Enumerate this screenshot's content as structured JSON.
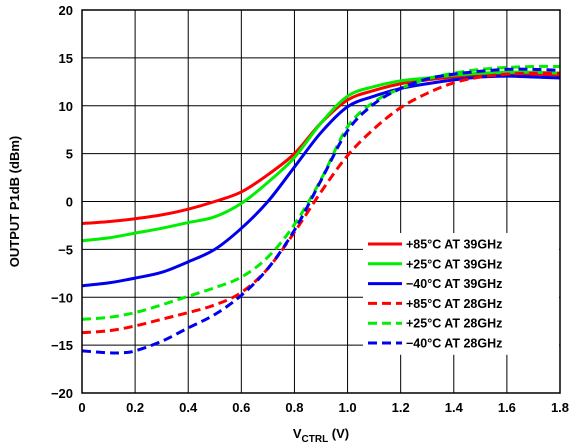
{
  "chart_data": {
    "type": "line",
    "xlabel": {
      "main": "V",
      "sub": "CTRL",
      "unit": " (V)"
    },
    "ylabel": "OUTPUT P1dB (dBm)",
    "xlim": [
      0,
      1.8
    ],
    "ylim": [
      -20,
      20
    ],
    "x_ticks": [
      "0",
      "0.2",
      "0.4",
      "0.6",
      "0.8",
      "1.0",
      "1.2",
      "1.4",
      "1.6",
      "1.8"
    ],
    "y_ticks": [
      "20",
      "15",
      "10",
      "5",
      "0",
      "−5",
      "−10",
      "−15",
      "−20"
    ],
    "grid": true,
    "legend_position": "bottom-right",
    "series": [
      {
        "name": "+85°C AT 39GHz",
        "color": "#ff0000",
        "style": "solid",
        "x": [
          0,
          0.1,
          0.2,
          0.3,
          0.4,
          0.5,
          0.6,
          0.7,
          0.8,
          0.9,
          1.0,
          1.1,
          1.2,
          1.3,
          1.4,
          1.5,
          1.6,
          1.7,
          1.8
        ],
        "y": [
          -2.3,
          -2.1,
          -1.8,
          -1.4,
          -0.8,
          0.0,
          1.0,
          2.8,
          5.0,
          8.2,
          10.6,
          11.6,
          12.3,
          12.7,
          13.0,
          13.2,
          13.3,
          13.3,
          13.2
        ]
      },
      {
        "name": "+25°C AT 39GHz",
        "color": "#00ee00",
        "style": "solid",
        "x": [
          0,
          0.1,
          0.2,
          0.3,
          0.4,
          0.5,
          0.6,
          0.7,
          0.8,
          0.9,
          1.0,
          1.1,
          1.2,
          1.3,
          1.4,
          1.5,
          1.6,
          1.7,
          1.8
        ],
        "y": [
          -4.1,
          -3.8,
          -3.3,
          -2.8,
          -2.2,
          -1.6,
          -0.2,
          2.0,
          4.6,
          8.2,
          11.0,
          12.0,
          12.6,
          12.9,
          13.2,
          13.4,
          13.5,
          13.5,
          13.4
        ]
      },
      {
        "name": "−40°C AT 39GHz",
        "color": "#0000ee",
        "style": "solid",
        "x": [
          0,
          0.1,
          0.2,
          0.3,
          0.4,
          0.5,
          0.6,
          0.7,
          0.8,
          0.9,
          1.0,
          1.1,
          1.2,
          1.3,
          1.4,
          1.5,
          1.6,
          1.7,
          1.8
        ],
        "y": [
          -8.8,
          -8.5,
          -8.0,
          -7.4,
          -6.3,
          -5.0,
          -2.8,
          0.0,
          3.6,
          7.2,
          9.9,
          11.0,
          11.8,
          12.3,
          12.7,
          13.0,
          13.1,
          13.0,
          12.9
        ]
      },
      {
        "name": "+85°C AT 28GHz",
        "color": "#ff0000",
        "style": "dashed",
        "x": [
          0,
          0.1,
          0.2,
          0.3,
          0.4,
          0.5,
          0.6,
          0.7,
          0.8,
          0.9,
          1.0,
          1.1,
          1.2,
          1.3,
          1.4,
          1.5,
          1.6,
          1.7,
          1.8
        ],
        "y": [
          -13.7,
          -13.5,
          -13.0,
          -12.3,
          -11.6,
          -10.8,
          -9.5,
          -7.0,
          -3.2,
          1.0,
          4.8,
          7.6,
          9.8,
          11.3,
          12.4,
          13.0,
          13.3,
          13.4,
          13.4
        ]
      },
      {
        "name": "+25°C AT 28GHz",
        "color": "#00ee00",
        "style": "dashed",
        "x": [
          0,
          0.1,
          0.2,
          0.3,
          0.4,
          0.5,
          0.6,
          0.7,
          0.8,
          0.9,
          1.0,
          1.1,
          1.2,
          1.3,
          1.4,
          1.5,
          1.6,
          1.7,
          1.8
        ],
        "y": [
          -12.3,
          -12.1,
          -11.6,
          -10.8,
          -9.9,
          -9.0,
          -7.9,
          -5.8,
          -2.4,
          2.3,
          7.8,
          10.4,
          11.8,
          12.8,
          13.4,
          13.8,
          14.0,
          14.1,
          14.1
        ]
      },
      {
        "name": "−40°C AT 28GHz",
        "color": "#0000ee",
        "style": "dashed",
        "x": [
          0,
          0.1,
          0.15,
          0.2,
          0.3,
          0.4,
          0.5,
          0.6,
          0.7,
          0.8,
          0.9,
          1.0,
          1.1,
          1.2,
          1.3,
          1.4,
          1.5,
          1.6,
          1.7,
          1.8
        ],
        "y": [
          -15.6,
          -15.8,
          -15.8,
          -15.6,
          -14.6,
          -13.2,
          -11.8,
          -9.8,
          -7.0,
          -3.0,
          2.2,
          7.4,
          10.2,
          11.8,
          12.8,
          13.3,
          13.6,
          13.8,
          13.8,
          13.7
        ]
      }
    ]
  }
}
